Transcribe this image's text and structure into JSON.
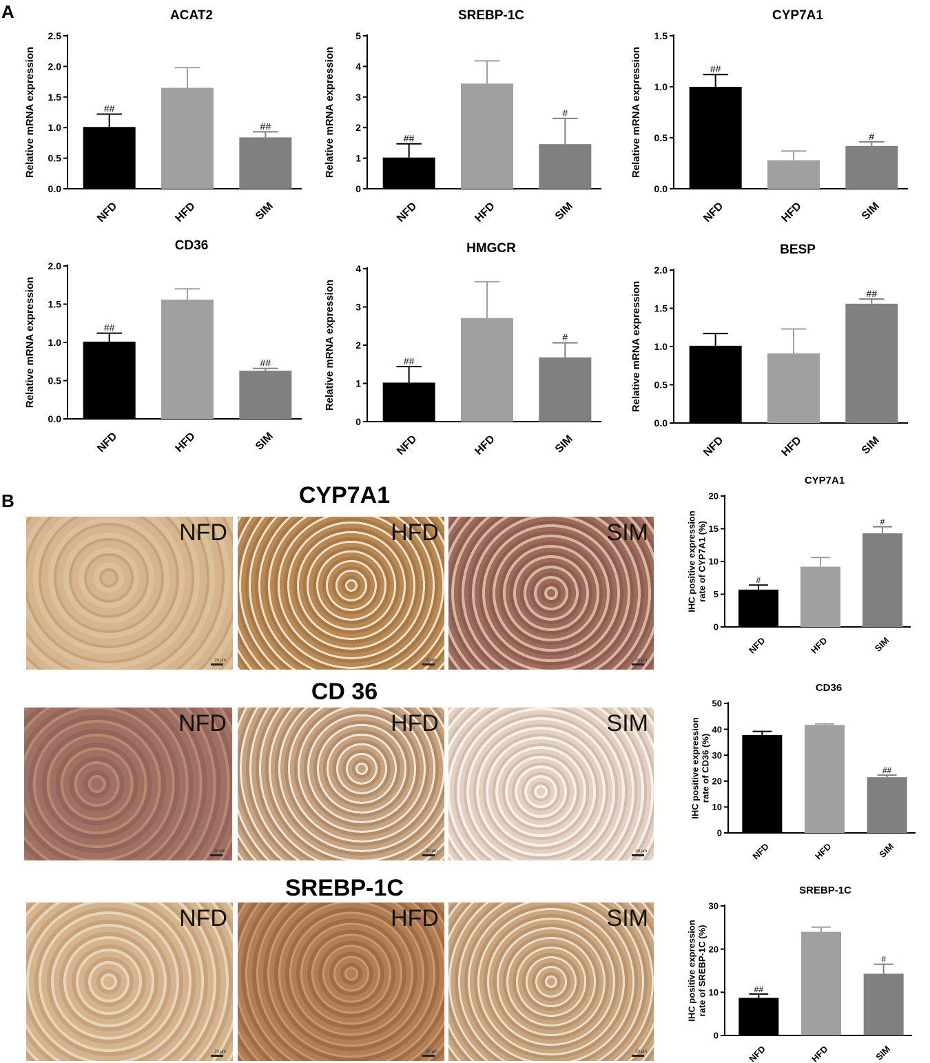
{
  "panels": {
    "a": "A",
    "b": "B"
  },
  "group_colors": {
    "NFD": "#000000",
    "HFD": "#a0a0a3",
    "SIM": "#808080"
  },
  "chart_data": [
    {
      "type": "bar",
      "title": "ACAT2",
      "ylabel": "Relative mRNA expression",
      "categories": [
        "NFD",
        "HFD",
        "SIM"
      ],
      "values": [
        1.01,
        1.65,
        0.84
      ],
      "errors": [
        0.21,
        0.33,
        0.09
      ],
      "annotations": [
        "##",
        "",
        "##"
      ],
      "ylim": [
        0,
        2.5
      ],
      "yticks": [
        "0.0",
        "0.5",
        "1.0",
        "1.5",
        "2.0",
        "2.5"
      ]
    },
    {
      "type": "bar",
      "title": "SREBP-1C",
      "ylabel": "Relative mRNA expression",
      "categories": [
        "NFD",
        "HFD",
        "SIM"
      ],
      "values": [
        1.02,
        3.44,
        1.46
      ],
      "errors": [
        0.45,
        0.74,
        0.84
      ],
      "annotations": [
        "##",
        "",
        "#"
      ],
      "ylim": [
        0,
        5
      ],
      "yticks": [
        "0",
        "1",
        "2",
        "3",
        "4",
        "5"
      ]
    },
    {
      "type": "bar",
      "title": "CYP7A1",
      "ylabel": "Relative mRNA expression",
      "categories": [
        "NFD",
        "HFD",
        "SIM"
      ],
      "values": [
        1.0,
        0.28,
        0.42
      ],
      "errors": [
        0.12,
        0.09,
        0.04
      ],
      "annotations": [
        "##",
        "",
        "#"
      ],
      "ylim": [
        0,
        1.5
      ],
      "yticks": [
        "0.0",
        "0.5",
        "1.0",
        "1.5"
      ]
    },
    {
      "type": "bar",
      "title": "CD36",
      "ylabel": "Relative mRNA expression",
      "categories": [
        "NFD",
        "HFD",
        "SIM"
      ],
      "values": [
        1.01,
        1.56,
        0.63
      ],
      "errors": [
        0.11,
        0.14,
        0.03
      ],
      "annotations": [
        "##",
        "",
        "##"
      ],
      "ylim": [
        0,
        2.0
      ],
      "yticks": [
        "0.0",
        "0.5",
        "1.0",
        "1.5",
        "2.0"
      ]
    },
    {
      "type": "bar",
      "title": "HMGCR",
      "ylabel": "Relative mRNA expression",
      "categories": [
        "NFD",
        "HFD",
        "SIM"
      ],
      "values": [
        1.02,
        2.71,
        1.68
      ],
      "errors": [
        0.42,
        0.95,
        0.38
      ],
      "annotations": [
        "##",
        "",
        "#"
      ],
      "ylim": [
        0,
        4
      ],
      "yticks": [
        "0",
        "1",
        "2",
        "3",
        "4"
      ]
    },
    {
      "type": "bar",
      "title": "BESP",
      "ylabel": "Relative mRNA expression",
      "categories": [
        "NFD",
        "HFD",
        "SIM"
      ],
      "values": [
        1.01,
        0.91,
        1.56
      ],
      "errors": [
        0.16,
        0.32,
        0.06
      ],
      "annotations": [
        "",
        "",
        "##"
      ],
      "ylim": [
        0,
        2.0
      ],
      "yticks": [
        "0.0",
        "0.5",
        "1.0",
        "1.5",
        "2.0"
      ]
    },
    {
      "type": "bar",
      "title": "CYP7A1",
      "ylabel": "IHC positive expression rate of CYP7A1 (%)",
      "categories": [
        "NFD",
        "HFD",
        "SIM"
      ],
      "values": [
        5.7,
        9.2,
        14.3
      ],
      "errors": [
        0.7,
        1.4,
        1.0
      ],
      "annotations": [
        "#",
        "",
        "#"
      ],
      "ylim": [
        0,
        20
      ],
      "yticks": [
        "0",
        "5",
        "10",
        "15",
        "20"
      ]
    },
    {
      "type": "bar",
      "title": "CD36",
      "ylabel": "IHC positive expression rate of CD36 (%)",
      "categories": [
        "NFD",
        "HFD",
        "SIM"
      ],
      "values": [
        37.8,
        41.7,
        21.5
      ],
      "errors": [
        1.4,
        0.4,
        0.8
      ],
      "annotations": [
        "",
        "",
        "##"
      ],
      "ylim": [
        0,
        50
      ],
      "yticks": [
        "0",
        "10",
        "20",
        "30",
        "40",
        "50"
      ]
    },
    {
      "type": "bar",
      "title": "SREBP-1C",
      "ylabel": "IHC positive expression rate of SREBP-1C (%)",
      "categories": [
        "NFD",
        "HFD",
        "SIM"
      ],
      "values": [
        8.7,
        24.0,
        14.3
      ],
      "errors": [
        0.9,
        1.1,
        2.2
      ],
      "annotations": [
        "##",
        "",
        "#"
      ],
      "ylim": [
        0,
        30
      ],
      "yticks": [
        "0",
        "10",
        "20",
        "30"
      ]
    }
  ],
  "micrographs": [
    {
      "title": "CYP7A1",
      "images": [
        {
          "label": "NFD",
          "scale": "20 μm"
        },
        {
          "label": "HFD",
          "scale": "20 μm"
        },
        {
          "label": "SIM",
          "scale": "20 μm"
        }
      ]
    },
    {
      "title": "CD 36",
      "images": [
        {
          "label": "NFD",
          "scale": "20 μm"
        },
        {
          "label": "HFD",
          "scale": "20 μm"
        },
        {
          "label": "SIM",
          "scale": "20 μm"
        }
      ]
    },
    {
      "title": "SREBP-1C",
      "images": [
        {
          "label": "NFD",
          "scale": "20 μm"
        },
        {
          "label": "HFD",
          "scale": "20 μm"
        },
        {
          "label": "SIM",
          "scale": "20 μm"
        }
      ]
    }
  ]
}
